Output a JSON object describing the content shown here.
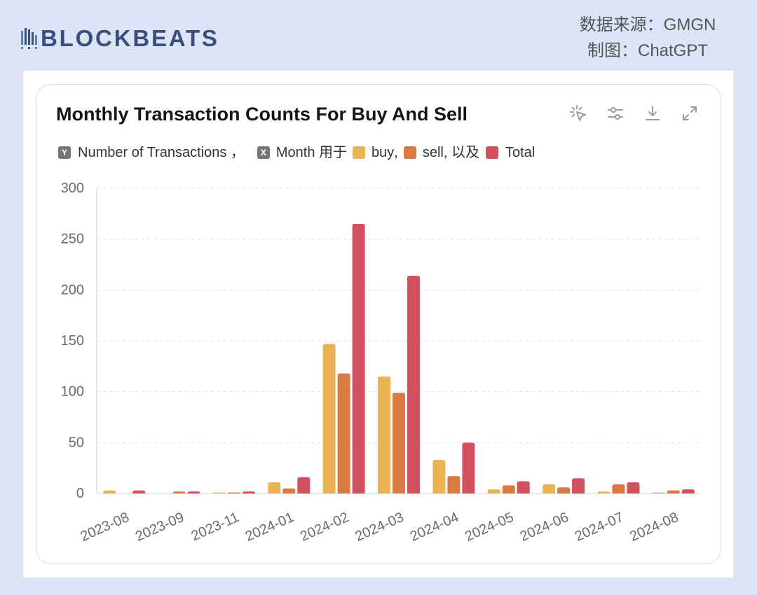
{
  "brand": {
    "name": "BLOCKBEATS",
    "color": "#3b4f7d",
    "accent": "#5f7fc4"
  },
  "credits": {
    "source": "数据来源：GMGN",
    "made_by": "制图：ChatGPT"
  },
  "toolbar": {
    "icons": [
      "click-sparkle-icon",
      "sliders-icon",
      "download-icon",
      "expand-icon"
    ]
  },
  "legend": {
    "y_badge": "Y",
    "sep_y": " ，",
    "x_badge": "X",
    "sep_x": " 用于",
    "sep_buy": ",",
    "sep_sell": ", 以及"
  },
  "chart_data": {
    "type": "bar",
    "title": "Monthly Transaction Counts For Buy And Sell",
    "xlabel": "Month",
    "ylabel": "Number of Transactions",
    "categories": [
      "2023-08",
      "2023-09",
      "2023-11",
      "2024-01",
      "2024-02",
      "2024-03",
      "2024-04",
      "2024-05",
      "2024-06",
      "2024-07",
      "2024-08"
    ],
    "series": [
      {
        "name": "buy",
        "color": "#ebb256",
        "values": [
          3,
          0,
          1,
          11,
          147,
          115,
          33,
          4,
          9,
          2,
          1
        ]
      },
      {
        "name": "sell",
        "color": "#d97a43",
        "values": [
          0,
          2,
          1,
          5,
          118,
          99,
          17,
          8,
          6,
          9,
          3
        ]
      },
      {
        "name": "Total",
        "color": "#d3505e",
        "values": [
          3,
          2,
          2,
          16,
          265,
          214,
          50,
          12,
          15,
          11,
          4
        ]
      }
    ],
    "ylim": [
      0,
      300
    ],
    "yticks": [
      0,
      50,
      100,
      150,
      200,
      250,
      300
    ],
    "grid": true,
    "legend": "top-left"
  }
}
